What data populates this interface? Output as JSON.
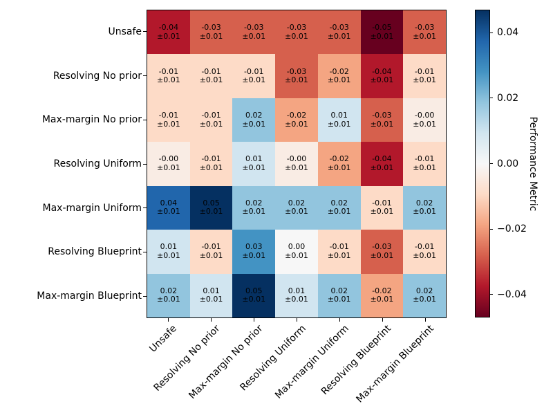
{
  "chart_data": {
    "type": "heatmap",
    "title": "",
    "rows": [
      "Unsafe",
      "Resolving No prior",
      "Max-margin No prior",
      "Resolving Uniform",
      "Max-margin Uniform",
      "Resolving Blueprint",
      "Max-margin Blueprint"
    ],
    "columns": [
      "Unsafe",
      "Resolving No prior",
      "Max-margin No prior",
      "Resolving Uniform",
      "Max-margin Uniform",
      "Resolving Blueprint",
      "Max-margin Blueprint"
    ],
    "cells": [
      [
        "-0.04",
        "-0.03",
        "-0.03",
        "-0.03",
        "-0.03",
        "-0.05",
        "-0.03"
      ],
      [
        "-0.01",
        "-0.01",
        "-0.01",
        "-0.03",
        "-0.02",
        "-0.04",
        "-0.01"
      ],
      [
        "-0.01",
        "-0.01",
        "0.02",
        "-0.02",
        "0.01",
        "-0.03",
        "-0.00"
      ],
      [
        "-0.00",
        "-0.01",
        "0.01",
        "-0.00",
        "-0.02",
        "-0.04",
        "-0.01"
      ],
      [
        "0.04",
        "0.05",
        "0.02",
        "0.02",
        "0.02",
        "-0.01",
        "0.02"
      ],
      [
        "0.01",
        "-0.01",
        "0.03",
        "0.00",
        "-0.01",
        "-0.03",
        "-0.01"
      ],
      [
        "0.02",
        "0.01",
        "0.05",
        "0.01",
        "0.02",
        "-0.02",
        "0.02"
      ]
    ],
    "cell_error": "±0.01",
    "colorbar": {
      "label": "Performance Metric",
      "tick_labels": [
        "0.04",
        "0.02",
        "0.00",
        "−0.02",
        "−0.04"
      ],
      "tick_values": [
        0.04,
        0.02,
        0.0,
        -0.02,
        -0.04
      ],
      "vmin": -0.047,
      "vmax": 0.047
    },
    "colormap": {
      "name": "RdBu",
      "vmin": -0.05,
      "vmax": 0.05,
      "stops": [
        "#67001f",
        "#b2182b",
        "#d6604d",
        "#f4a582",
        "#fddbc7",
        "#f7f7f7",
        "#d1e5f0",
        "#92c5de",
        "#4393c3",
        "#2166ac",
        "#053061"
      ]
    },
    "text_color": "#000000",
    "axis_color": "#000000"
  }
}
